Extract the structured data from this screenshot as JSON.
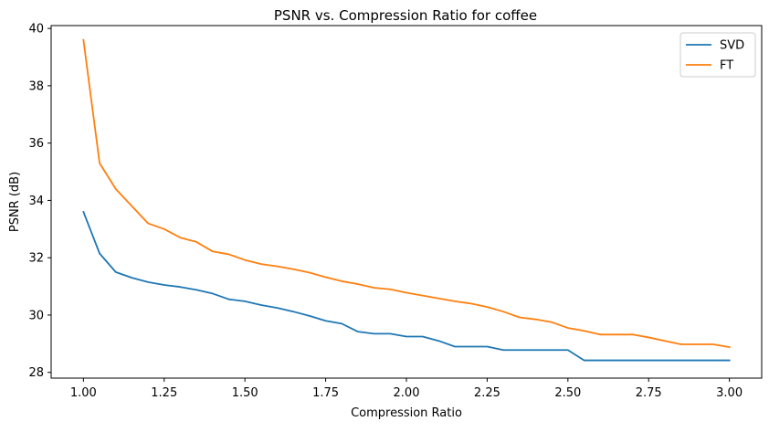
{
  "chart_data": {
    "type": "line",
    "title": "PSNR vs. Compression Ratio for coffee",
    "xlabel": "Compression Ratio",
    "ylabel": "PSNR (dB)",
    "xlim": [
      0.9,
      3.1
    ],
    "ylim": [
      27.8,
      40.1
    ],
    "xticks": [
      1.0,
      1.25,
      1.5,
      1.75,
      2.0,
      2.25,
      2.5,
      2.75,
      3.0
    ],
    "xtick_labels": [
      "1.00",
      "1.25",
      "1.50",
      "1.75",
      "2.00",
      "2.25",
      "2.50",
      "2.75",
      "3.00"
    ],
    "yticks": [
      28,
      30,
      32,
      34,
      36,
      38,
      40
    ],
    "ytick_labels": [
      "28",
      "30",
      "32",
      "34",
      "36",
      "38",
      "40"
    ],
    "grid": false,
    "legend_position": "top-right",
    "x": [
      1.0,
      1.05,
      1.1,
      1.15,
      1.2,
      1.25,
      1.3,
      1.35,
      1.4,
      1.45,
      1.5,
      1.55,
      1.6,
      1.65,
      1.7,
      1.75,
      1.8,
      1.85,
      1.9,
      1.95,
      2.0,
      2.05,
      2.1,
      2.15,
      2.2,
      2.25,
      2.3,
      2.35,
      2.4,
      2.45,
      2.5,
      2.55,
      2.6,
      2.65,
      2.7,
      2.75,
      2.8,
      2.85,
      2.9,
      2.95,
      3.0
    ],
    "series": [
      {
        "name": "SVD",
        "color": "#1f77b4",
        "values": [
          33.6,
          32.15,
          31.5,
          31.3,
          31.15,
          31.05,
          30.98,
          30.88,
          30.75,
          30.55,
          30.48,
          30.35,
          30.25,
          30.12,
          29.97,
          29.8,
          29.7,
          29.42,
          29.35,
          29.35,
          29.25,
          29.25,
          29.1,
          28.9,
          28.9,
          28.9,
          28.78,
          28.78,
          28.78,
          28.78,
          28.78,
          28.42,
          28.42,
          28.42,
          28.42,
          28.42,
          28.42,
          28.42,
          28.42,
          28.42,
          28.42
        ]
      },
      {
        "name": "FT",
        "color": "#ff7f0e",
        "values": [
          39.6,
          35.3,
          34.4,
          33.8,
          33.2,
          33.0,
          32.7,
          32.55,
          32.22,
          32.12,
          31.92,
          31.78,
          31.7,
          31.6,
          31.48,
          31.32,
          31.18,
          31.08,
          30.95,
          30.9,
          30.78,
          30.68,
          30.58,
          30.48,
          30.4,
          30.28,
          30.12,
          29.92,
          29.85,
          29.75,
          29.55,
          29.45,
          29.32,
          29.32,
          29.32,
          29.22,
          29.1,
          28.98,
          28.98,
          28.98,
          28.88
        ]
      }
    ]
  }
}
